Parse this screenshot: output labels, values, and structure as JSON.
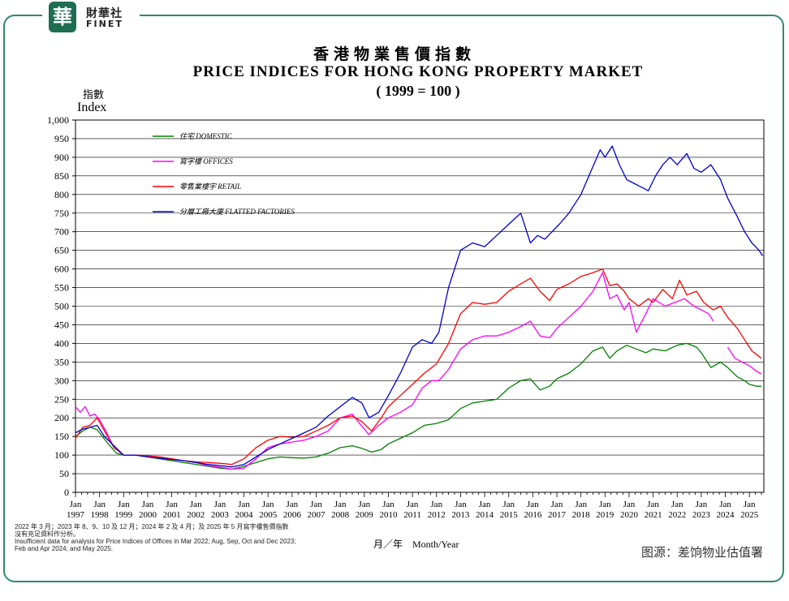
{
  "logo": {
    "badge": "華",
    "cn": "財華社",
    "en": "FINET"
  },
  "title_cn": "香港物業售價指數",
  "title_en": "PRICE INDICES FOR HONG KONG PROPERTY MARKET",
  "title_sub": "( 1999 = 100 )",
  "ylabel_cn": "指數",
  "ylabel_en": "Index",
  "xlabel": "月／年　Month/Year",
  "note": [
    "2022 年 3 月；2023 年 8、9、10 及 12 月；2024 年 2 及 4 月；及 2025 年 5 月寫字樓售價指數",
    "沒有充足資料作分析。",
    "Insufficient data for analysis for Price Indices of Offices in Mar 2022; Aug, Sep, Oct and Dec 2023;",
    "Feb and Apr 2024; and May 2025."
  ],
  "source": "图源：差饷物业估值署",
  "colors": {
    "domestic": "#008000",
    "offices": "#ff00ff",
    "retail": "#ff0000",
    "flatted": "#0000cc",
    "frame": "#2e8b6a"
  },
  "chart_data": {
    "type": "line",
    "title": "PRICE INDICES FOR HONG KONG PROPERTY MARKET",
    "ylabel": "Index",
    "xlabel": "Month/Year",
    "ylim": [
      0,
      1000
    ],
    "yticks": [
      "0",
      "50",
      "100",
      "150",
      "200",
      "250",
      "300",
      "350",
      "400",
      "450",
      "500",
      "550",
      "600",
      "650",
      "700",
      "750",
      "800",
      "850",
      "900",
      "950",
      "1,000"
    ],
    "xticks": [
      {
        "m": "Jan",
        "y": "1997"
      },
      {
        "m": "Jan",
        "y": "1998"
      },
      {
        "m": "Jan",
        "y": "1999"
      },
      {
        "m": "Jan",
        "y": "2000"
      },
      {
        "m": "Jan",
        "y": "2001"
      },
      {
        "m": "Jan",
        "y": "2002"
      },
      {
        "m": "Jan",
        "y": "2003"
      },
      {
        "m": "Jan",
        "y": "2004"
      },
      {
        "m": "Jan",
        "y": "2005"
      },
      {
        "m": "Jan",
        "y": "2006"
      },
      {
        "m": "Jan",
        "y": "2007"
      },
      {
        "m": "Jan",
        "y": "2008"
      },
      {
        "m": "Jan",
        "y": "2009"
      },
      {
        "m": "Jan",
        "y": "2010"
      },
      {
        "m": "Jan",
        "y": "2011"
      },
      {
        "m": "Jan",
        "y": "2012"
      },
      {
        "m": "Jan",
        "y": "2013"
      },
      {
        "m": "Jan",
        "y": "2014"
      },
      {
        "m": "Jan",
        "y": "2015"
      },
      {
        "m": "Jan",
        "y": "2016"
      },
      {
        "m": "Jan",
        "y": "2017"
      },
      {
        "m": "Jan",
        "y": "2018"
      },
      {
        "m": "Jan",
        "y": "2019"
      },
      {
        "m": "Jan",
        "y": "2020"
      },
      {
        "m": "Jan",
        "y": "2021"
      },
      {
        "m": "Jan",
        "y": "2022"
      },
      {
        "m": "Jan",
        "y": "2023"
      },
      {
        "m": "Jan",
        "y": "2024"
      },
      {
        "m": "Jan",
        "y": "2025"
      }
    ],
    "xrange": [
      1997.0,
      2025.6
    ],
    "grid": "horizontal",
    "legend_position": "top-left",
    "series": [
      {
        "key": "domestic",
        "name": "住宅  DOMESTIC",
        "x": [
          1997.0,
          1997.3,
          1997.6,
          1997.9,
          1998.3,
          1998.7,
          1999.0,
          1999.5,
          2000.0,
          2000.5,
          2001.0,
          2001.5,
          2002.0,
          2002.5,
          2003.0,
          2003.5,
          2004.0,
          2004.5,
          2005.0,
          2005.5,
          2006.0,
          2006.5,
          2007.0,
          2007.5,
          2008.0,
          2008.5,
          2008.9,
          2009.3,
          2009.7,
          2010.0,
          2010.5,
          2011.0,
          2011.5,
          2012.0,
          2012.5,
          2013.0,
          2013.5,
          2014.0,
          2014.5,
          2015.0,
          2015.5,
          2015.9,
          2016.3,
          2016.7,
          2017.0,
          2017.5,
          2018.0,
          2018.5,
          2018.9,
          2019.2,
          2019.5,
          2019.9,
          2020.3,
          2020.7,
          2021.0,
          2021.5,
          2022.0,
          2022.4,
          2022.8,
          2023.0,
          2023.4,
          2023.8,
          2024.1,
          2024.5,
          2024.8,
          2025.0,
          2025.3,
          2025.5
        ],
        "y": [
          150,
          165,
          175,
          168,
          135,
          105,
          100,
          100,
          95,
          90,
          85,
          80,
          75,
          70,
          65,
          62,
          70,
          80,
          90,
          95,
          93,
          92,
          95,
          105,
          120,
          125,
          118,
          108,
          115,
          130,
          145,
          160,
          180,
          185,
          195,
          225,
          240,
          245,
          250,
          280,
          300,
          305,
          275,
          285,
          305,
          320,
          345,
          380,
          390,
          360,
          380,
          395,
          385,
          375,
          385,
          380,
          395,
          400,
          390,
          375,
          335,
          350,
          335,
          310,
          300,
          290,
          285,
          285
        ]
      },
      {
        "key": "offices",
        "name": "寫字樓  OFFICES",
        "x": [
          1997.0,
          1997.2,
          1997.4,
          1997.6,
          1997.8,
          1998.0,
          1998.3,
          1998.6,
          1999.0,
          1999.5,
          2000.0,
          2000.5,
          2001.0,
          2001.5,
          2002.0,
          2002.5,
          2003.0,
          2003.5,
          2004.0,
          2004.5,
          2005.0,
          2005.5,
          2006.0,
          2006.5,
          2007.0,
          2007.5,
          2008.0,
          2008.5,
          2008.8,
          2009.2,
          2009.6,
          2010.0,
          2010.5,
          2011.0,
          2011.4,
          2011.8,
          2012.1,
          2012.5,
          2013.0,
          2013.5,
          2014.0,
          2014.5,
          2015.0,
          2015.5,
          2015.9,
          2016.3,
          2016.7,
          2017.0,
          2017.5,
          2018.0,
          2018.5,
          2018.9,
          2019.2,
          2019.5,
          2019.8,
          2020.0,
          2020.3,
          2020.7,
          2021.0,
          2021.5,
          2021.9,
          2022.3,
          2022.7,
          2023.0,
          2023.3,
          2023.5
        ],
        "y": [
          230,
          215,
          230,
          205,
          210,
          195,
          160,
          120,
          100,
          100,
          96,
          92,
          90,
          85,
          80,
          72,
          68,
          62,
          65,
          90,
          120,
          130,
          135,
          140,
          150,
          165,
          200,
          210,
          185,
          155,
          180,
          200,
          215,
          235,
          280,
          300,
          300,
          330,
          385,
          410,
          420,
          420,
          430,
          445,
          460,
          420,
          415,
          440,
          470,
          500,
          540,
          590,
          520,
          530,
          490,
          510,
          430,
          480,
          520,
          500,
          510,
          520,
          500,
          490,
          480,
          460
        ]
      },
      {
        "key": "offices",
        "name": "",
        "x": [
          2024.1,
          2024.4,
          2024.7,
          2025.0,
          2025.3,
          2025.5
        ],
        "y": [
          390,
          360,
          350,
          340,
          325,
          318
        ]
      },
      {
        "key": "retail",
        "name": "零售業樓宇  RETAIL",
        "x": [
          1997.0,
          1997.3,
          1997.6,
          1997.9,
          1998.2,
          1998.6,
          1999.0,
          1999.5,
          2000.0,
          2000.5,
          2001.0,
          2001.5,
          2002.0,
          2002.5,
          2003.0,
          2003.5,
          2004.0,
          2004.5,
          2005.0,
          2005.5,
          2006.0,
          2006.5,
          2007.0,
          2007.5,
          2008.0,
          2008.5,
          2008.9,
          2009.3,
          2009.7,
          2010.0,
          2010.5,
          2011.0,
          2011.5,
          2012.0,
          2012.5,
          2013.0,
          2013.5,
          2014.0,
          2014.5,
          2015.0,
          2015.5,
          2015.9,
          2016.3,
          2016.7,
          2017.0,
          2017.5,
          2018.0,
          2018.5,
          2018.9,
          2019.2,
          2019.5,
          2019.8,
          2020.0,
          2020.4,
          2020.8,
          2021.0,
          2021.4,
          2021.8,
          2022.1,
          2022.4,
          2022.8,
          2023.1,
          2023.5,
          2023.8,
          2024.1,
          2024.5,
          2024.8,
          2025.1,
          2025.3,
          2025.5
        ],
        "y": [
          145,
          175,
          180,
          200,
          165,
          120,
          100,
          100,
          98,
          95,
          90,
          85,
          82,
          80,
          78,
          75,
          90,
          120,
          140,
          150,
          148,
          150,
          165,
          180,
          200,
          205,
          190,
          165,
          200,
          230,
          260,
          290,
          320,
          345,
          400,
          480,
          510,
          505,
          510,
          540,
          560,
          575,
          540,
          515,
          545,
          560,
          580,
          590,
          600,
          555,
          560,
          540,
          520,
          500,
          520,
          510,
          545,
          520,
          570,
          530,
          540,
          510,
          490,
          500,
          470,
          440,
          410,
          380,
          370,
          360
        ]
      },
      {
        "key": "flatted",
        "name": "分層工廠大廈  FLATTED FACTORIES",
        "x": [
          1997.0,
          1997.3,
          1997.6,
          1997.9,
          1998.2,
          1998.6,
          1999.0,
          1999.5,
          2000.0,
          2000.5,
          2001.0,
          2001.5,
          2002.0,
          2002.5,
          2003.0,
          2003.5,
          2004.0,
          2004.5,
          2005.0,
          2005.5,
          2006.0,
          2006.5,
          2007.0,
          2007.5,
          2008.0,
          2008.5,
          2008.9,
          2009.2,
          2009.6,
          2010.0,
          2010.5,
          2011.0,
          2011.4,
          2011.8,
          2012.1,
          2012.5,
          2013.0,
          2013.5,
          2014.0,
          2014.5,
          2015.0,
          2015.5,
          2015.9,
          2016.2,
          2016.5,
          2016.8,
          2017.1,
          2017.5,
          2018.0,
          2018.4,
          2018.8,
          2019.0,
          2019.3,
          2019.6,
          2019.9,
          2020.2,
          2020.5,
          2020.8,
          2021.1,
          2021.4,
          2021.7,
          2022.0,
          2022.4,
          2022.7,
          2023.0,
          2023.4,
          2023.8,
          2024.1,
          2024.5,
          2024.8,
          2025.1,
          2025.4,
          2025.55
        ],
        "y": [
          160,
          170,
          175,
          180,
          150,
          125,
          100,
          100,
          95,
          92,
          88,
          85,
          80,
          75,
          72,
          68,
          75,
          95,
          115,
          130,
          145,
          160,
          175,
          205,
          230,
          255,
          240,
          200,
          215,
          260,
          320,
          390,
          410,
          400,
          430,
          550,
          650,
          670,
          660,
          690,
          720,
          750,
          670,
          690,
          680,
          700,
          720,
          750,
          800,
          860,
          920,
          900,
          930,
          880,
          840,
          830,
          820,
          810,
          850,
          880,
          900,
          880,
          910,
          870,
          860,
          880,
          840,
          790,
          740,
          700,
          670,
          650,
          635
        ]
      }
    ]
  }
}
